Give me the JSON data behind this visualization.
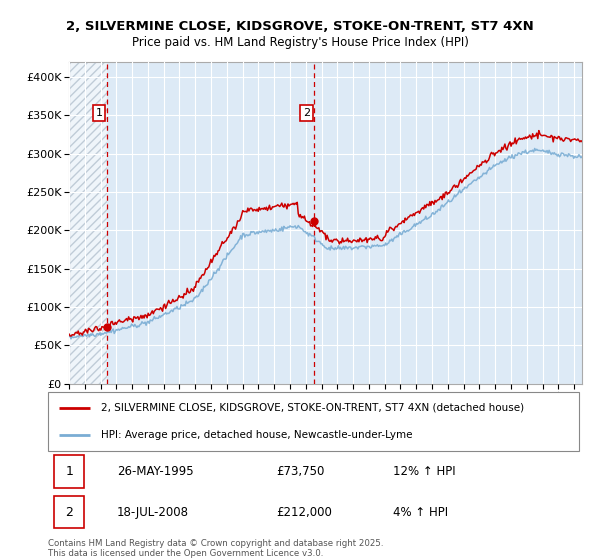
{
  "title1": "2, SILVERMINE CLOSE, KIDSGROVE, STOKE-ON-TRENT, ST7 4XN",
  "title2": "Price paid vs. HM Land Registry's House Price Index (HPI)",
  "legend_line1": "2, SILVERMINE CLOSE, KIDSGROVE, STOKE-ON-TRENT, ST7 4XN (detached house)",
  "legend_line2": "HPI: Average price, detached house, Newcastle-under-Lyme",
  "annotation1_date": "26-MAY-1995",
  "annotation1_price": "£73,750",
  "annotation1_hpi": "12% ↑ HPI",
  "annotation2_date": "18-JUL-2008",
  "annotation2_price": "£212,000",
  "annotation2_hpi": "4% ↑ HPI",
  "footer": "Contains HM Land Registry data © Crown copyright and database right 2025.\nThis data is licensed under the Open Government Licence v3.0.",
  "sale1_year": 1995.4,
  "sale1_price": 73750,
  "sale2_year": 2008.55,
  "sale2_price": 212000,
  "red_color": "#cc0000",
  "blue_color": "#7aadd4",
  "plot_bg": "#ddeaf6",
  "hatch_color": "#aabccc",
  "grid_color": "#ffffff",
  "ylim": [
    0,
    420000
  ],
  "xlim_start": 1993.0,
  "xlim_end": 2025.5
}
